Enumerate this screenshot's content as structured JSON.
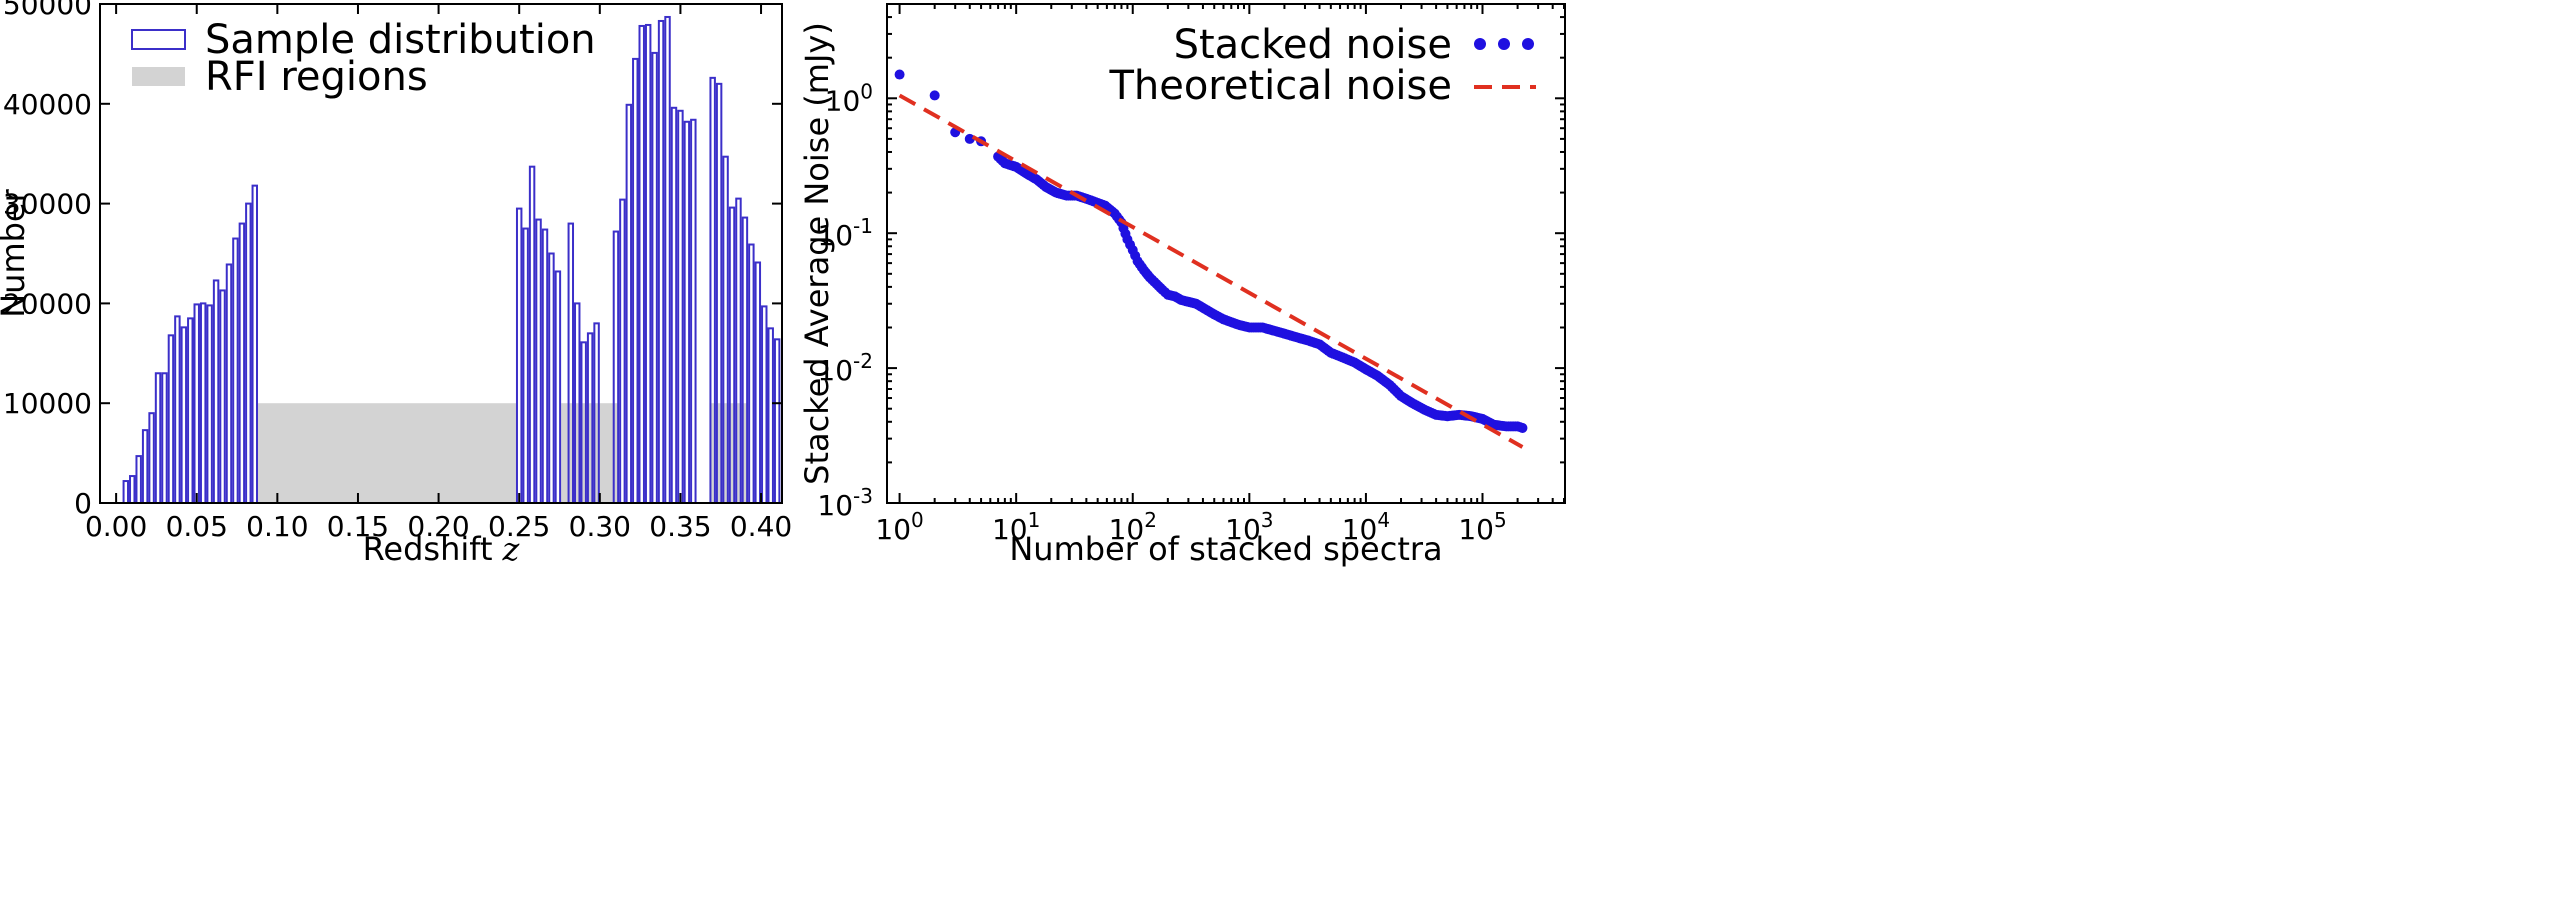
{
  "chart_data": [
    {
      "type": "bar",
      "xlabel": "Redshift",
      "xlabel_var": "z",
      "ylabel": "Number",
      "xlim": [
        -0.01,
        0.413
      ],
      "ylim": [
        0,
        50000
      ],
      "grid": false,
      "legend_position": "top-left",
      "x_ticks": [
        "0.00",
        "0.05",
        "0.10",
        "0.15",
        "0.20",
        "0.25",
        "0.30",
        "0.35",
        "0.40"
      ],
      "y_ticks": [
        "0",
        "10000",
        "20000",
        "30000",
        "40000",
        "50000"
      ],
      "series": [
        {
          "name": "Sample distribution",
          "style": "step-outline",
          "color": "#3b2fc9",
          "bin_width": 0.004,
          "x_left": [
            0.004,
            0.008,
            0.012,
            0.016,
            0.02,
            0.024,
            0.028,
            0.032,
            0.036,
            0.04,
            0.044,
            0.048,
            0.052,
            0.056,
            0.06,
            0.064,
            0.068,
            0.072,
            0.076,
            0.08,
            0.084,
            0.248,
            0.252,
            0.256,
            0.26,
            0.264,
            0.268,
            0.272,
            0.28,
            0.284,
            0.288,
            0.292,
            0.296,
            0.308,
            0.312,
            0.316,
            0.32,
            0.324,
            0.328,
            0.332,
            0.336,
            0.34,
            0.344,
            0.348,
            0.352,
            0.356,
            0.368,
            0.372,
            0.376,
            0.38,
            0.384,
            0.388,
            0.392,
            0.396,
            0.4,
            0.404,
            0.408
          ],
          "values": [
            2200,
            2700,
            4700,
            7300,
            9000,
            13000,
            13000,
            16800,
            18700,
            17600,
            18500,
            19900,
            20000,
            19800,
            22300,
            21300,
            23900,
            26500,
            28000,
            30000,
            31800,
            29500,
            27500,
            33700,
            28400,
            27400,
            25000,
            23200,
            28000,
            20000,
            16100,
            17000,
            18000,
            27200,
            30400,
            39900,
            44500,
            47800,
            47900,
            45100,
            48300,
            48700,
            39600,
            39300,
            38200,
            38400,
            42600,
            42000,
            34700,
            29600,
            30500,
            28600,
            25900,
            24100,
            19700,
            17500,
            16400
          ]
        },
        {
          "name": "RFI regions",
          "style": "filled-span",
          "color": "#d3d3d3",
          "height": 10000,
          "ranges": [
            [
              0.088,
              0.248
            ],
            [
              0.276,
              0.312
            ],
            [
              0.368,
              0.392
            ]
          ]
        }
      ],
      "legend": [
        "Sample distribution",
        "RFI regions"
      ]
    },
    {
      "type": "scatter",
      "xlabel": "Number of stacked spectra",
      "ylabel": "Stacked Average Noise (mJy)",
      "xscale": "log",
      "yscale": "log",
      "xlim": [
        0.78,
        510000
      ],
      "ylim": [
        0.001,
        5.0
      ],
      "grid": false,
      "legend_position": "top-right",
      "x_ticks": [
        {
          "base": "10",
          "exp": "0",
          "value": 1
        },
        {
          "base": "10",
          "exp": "1",
          "value": 10
        },
        {
          "base": "10",
          "exp": "2",
          "value": 100
        },
        {
          "base": "10",
          "exp": "3",
          "value": 1000
        },
        {
          "base": "10",
          "exp": "4",
          "value": 10000
        },
        {
          "base": "10",
          "exp": "5",
          "value": 100000
        }
      ],
      "y_ticks": [
        {
          "base": "10",
          "exp": "-3",
          "value": 0.001
        },
        {
          "base": "10",
          "exp": "-2",
          "value": 0.01
        },
        {
          "base": "10",
          "exp": "-1",
          "value": 0.1
        },
        {
          "base": "10",
          "exp": "0",
          "value": 1
        }
      ],
      "series": [
        {
          "name": "Stacked noise",
          "style": "points",
          "color": "#1f10e0",
          "x": [
            1,
            2,
            3,
            4,
            5,
            7,
            8,
            10,
            12,
            15,
            18,
            22,
            27,
            33,
            40,
            48,
            58,
            70,
            80,
            90,
            100,
            110,
            125,
            140,
            160,
            180,
            200,
            230,
            260,
            300,
            350,
            400,
            500,
            600,
            800,
            1000,
            1300,
            1600,
            2000,
            2500,
            3200,
            4000,
            5000,
            6300,
            8000,
            10000,
            12500,
            16000,
            20000,
            25000,
            32000,
            40000,
            50000,
            63000,
            80000,
            100000,
            125000,
            160000,
            200000,
            220000
          ],
          "y": [
            1.5,
            1.05,
            0.56,
            0.5,
            0.48,
            0.37,
            0.33,
            0.31,
            0.28,
            0.25,
            0.22,
            0.2,
            0.19,
            0.19,
            0.18,
            0.17,
            0.16,
            0.14,
            0.12,
            0.09,
            0.075,
            0.062,
            0.053,
            0.047,
            0.042,
            0.038,
            0.035,
            0.034,
            0.032,
            0.031,
            0.03,
            0.028,
            0.025,
            0.023,
            0.021,
            0.02,
            0.02,
            0.019,
            0.018,
            0.017,
            0.016,
            0.015,
            0.013,
            0.012,
            0.011,
            0.0098,
            0.0088,
            0.0075,
            0.0062,
            0.0055,
            0.0049,
            0.0045,
            0.0044,
            0.0045,
            0.0044,
            0.0042,
            0.0038,
            0.0037,
            0.0037,
            0.0036
          ]
        },
        {
          "name": "Theoretical noise",
          "style": "dashed-line",
          "color": "#e03020",
          "x": [
            1,
            220000
          ],
          "y": [
            1.05,
            0.0026
          ]
        }
      ],
      "legend": [
        "Stacked noise",
        "Theoretical noise"
      ]
    }
  ]
}
